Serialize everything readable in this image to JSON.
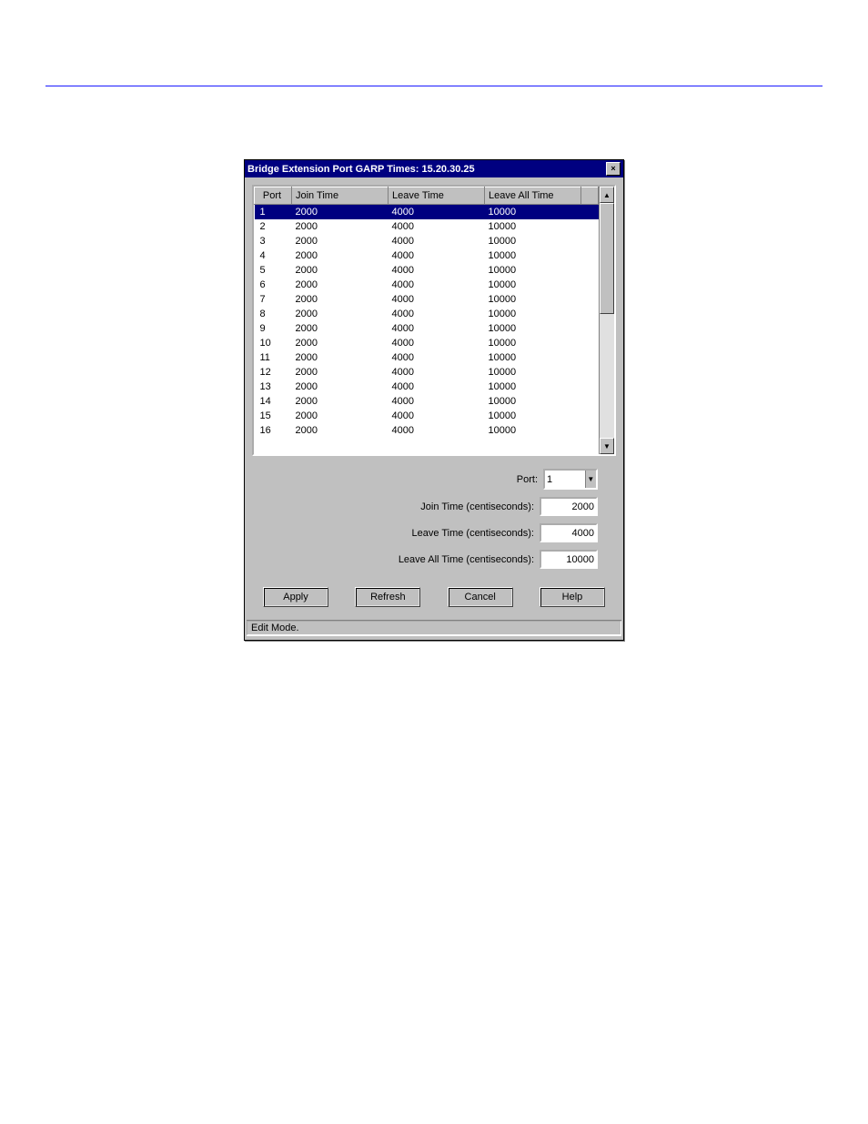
{
  "window": {
    "title": "Bridge Extension Port GARP Times: 15.20.30.25",
    "close_glyph": "×"
  },
  "table": {
    "headers": {
      "port": "Port",
      "join": "Join Time",
      "leave": "Leave Time",
      "leaveall": "Leave All Time"
    },
    "rows": [
      {
        "port": "1",
        "join": "2000",
        "leave": "4000",
        "leaveall": "10000",
        "selected": true
      },
      {
        "port": "2",
        "join": "2000",
        "leave": "4000",
        "leaveall": "10000"
      },
      {
        "port": "3",
        "join": "2000",
        "leave": "4000",
        "leaveall": "10000"
      },
      {
        "port": "4",
        "join": "2000",
        "leave": "4000",
        "leaveall": "10000"
      },
      {
        "port": "5",
        "join": "2000",
        "leave": "4000",
        "leaveall": "10000"
      },
      {
        "port": "6",
        "join": "2000",
        "leave": "4000",
        "leaveall": "10000"
      },
      {
        "port": "7",
        "join": "2000",
        "leave": "4000",
        "leaveall": "10000"
      },
      {
        "port": "8",
        "join": "2000",
        "leave": "4000",
        "leaveall": "10000"
      },
      {
        "port": "9",
        "join": "2000",
        "leave": "4000",
        "leaveall": "10000"
      },
      {
        "port": "10",
        "join": "2000",
        "leave": "4000",
        "leaveall": "10000"
      },
      {
        "port": "11",
        "join": "2000",
        "leave": "4000",
        "leaveall": "10000"
      },
      {
        "port": "12",
        "join": "2000",
        "leave": "4000",
        "leaveall": "10000"
      },
      {
        "port": "13",
        "join": "2000",
        "leave": "4000",
        "leaveall": "10000"
      },
      {
        "port": "14",
        "join": "2000",
        "leave": "4000",
        "leaveall": "10000"
      },
      {
        "port": "15",
        "join": "2000",
        "leave": "4000",
        "leaveall": "10000"
      },
      {
        "port": "16",
        "join": "2000",
        "leave": "4000",
        "leaveall": "10000"
      }
    ]
  },
  "form": {
    "port_label": "Port:",
    "port_value": "1",
    "join_label": "Join Time (centiseconds):",
    "join_value": "2000",
    "leave_label": "Leave Time (centiseconds):",
    "leave_value": "4000",
    "leaveall_label": "Leave All Time (centiseconds):",
    "leaveall_value": "10000"
  },
  "buttons": {
    "apply": "Apply",
    "refresh": "Refresh",
    "cancel": "Cancel",
    "help": "Help"
  },
  "status": "Edit Mode.",
  "scroll": {
    "up": "▲",
    "down": "▼"
  },
  "colors": {
    "titlebar_bg": "#000080",
    "titlebar_fg": "#ffffff",
    "face": "#c0c0c0",
    "selection_bg": "#000080",
    "selection_fg": "#ffffff"
  }
}
